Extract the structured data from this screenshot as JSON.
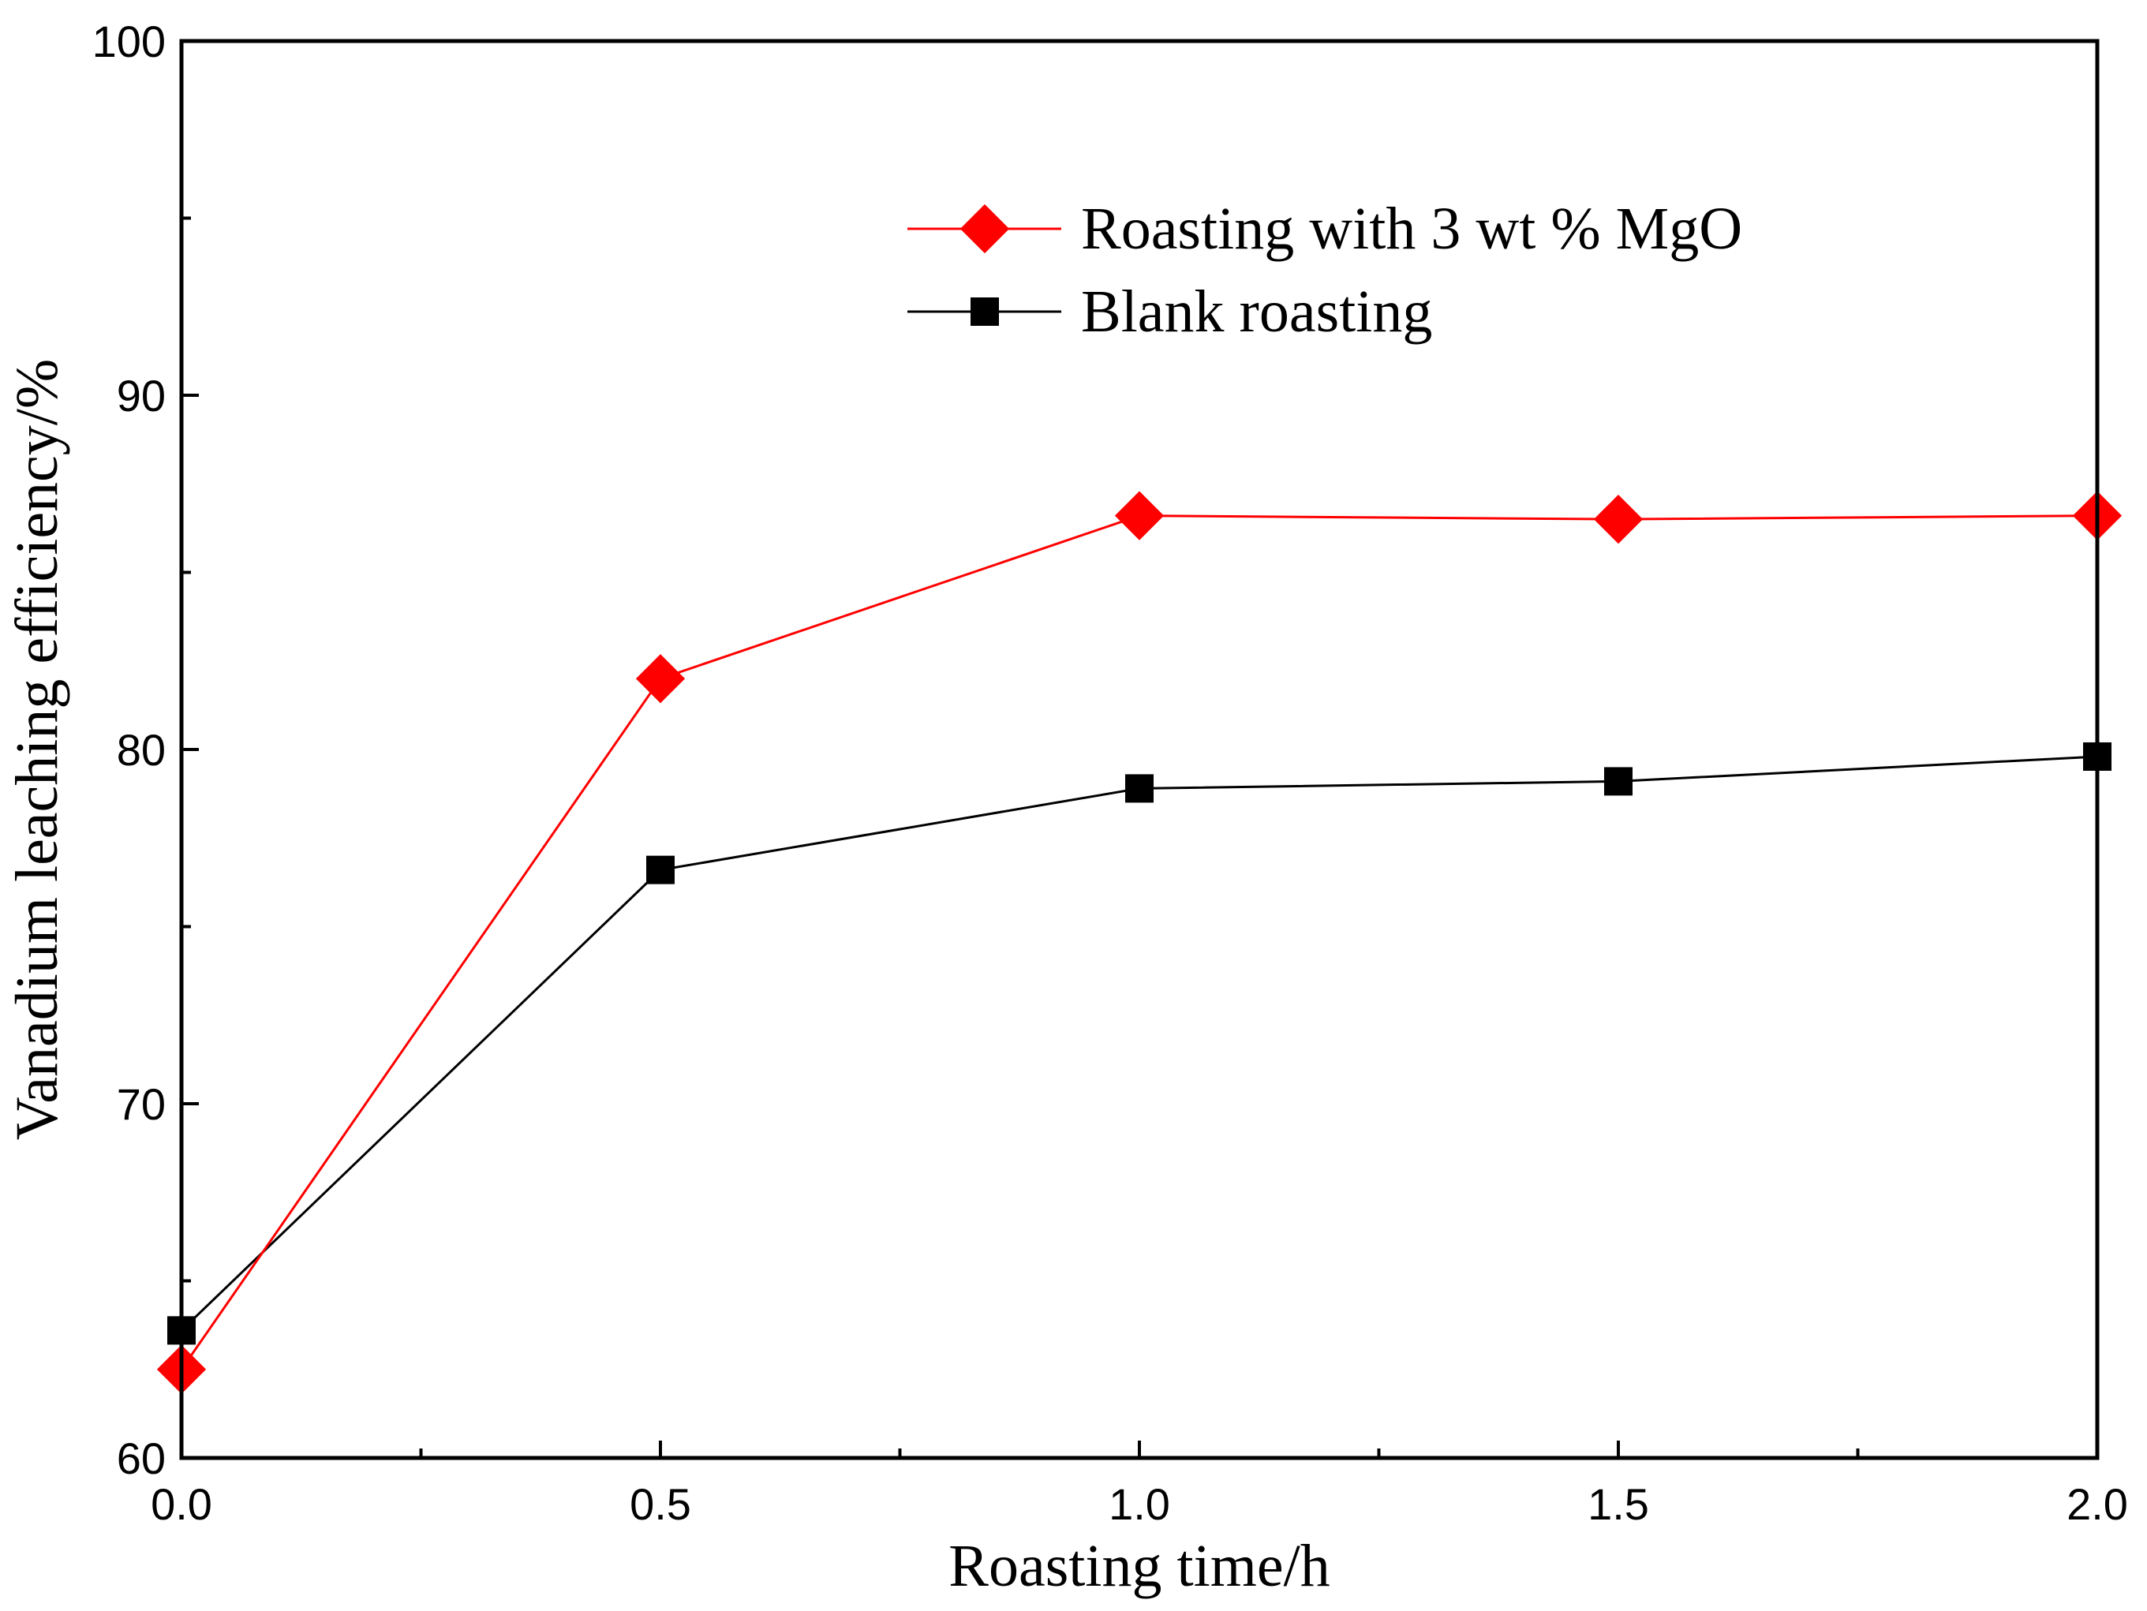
{
  "chart_data": {
    "type": "line",
    "title": "",
    "xlabel": "Roasting time/h",
    "ylabel": "Vanadium leaching efficiency/%",
    "xlim": [
      0.0,
      2.0
    ],
    "ylim": [
      60,
      100
    ],
    "x_major_ticks": [
      0.0,
      0.5,
      1.0,
      1.5,
      2.0
    ],
    "x_tick_labels": [
      "0.0",
      "0.5",
      "1.0",
      "1.5",
      "2.0"
    ],
    "x_minor_ticks": [
      0.25,
      0.75,
      1.25,
      1.75
    ],
    "y_major_ticks": [
      60,
      70,
      80,
      90,
      100
    ],
    "y_tick_labels": [
      "60",
      "70",
      "80",
      "90",
      "100"
    ],
    "y_minor_ticks": [
      65,
      75,
      85,
      95
    ],
    "grid": false,
    "legend_position": "top-right",
    "series": [
      {
        "name": "Roasting with 3 wt % MgO",
        "marker": "diamond",
        "color": "#ff0000",
        "x": [
          0.0,
          0.5,
          1.0,
          1.5,
          2.0
        ],
        "y": [
          62.5,
          82.0,
          86.6,
          86.5,
          86.6
        ]
      },
      {
        "name": "Blank roasting",
        "marker": "square",
        "color": "#000000",
        "x": [
          0.0,
          0.5,
          1.0,
          1.5,
          2.0
        ],
        "y": [
          63.6,
          76.6,
          78.9,
          79.1,
          79.8
        ]
      }
    ]
  }
}
